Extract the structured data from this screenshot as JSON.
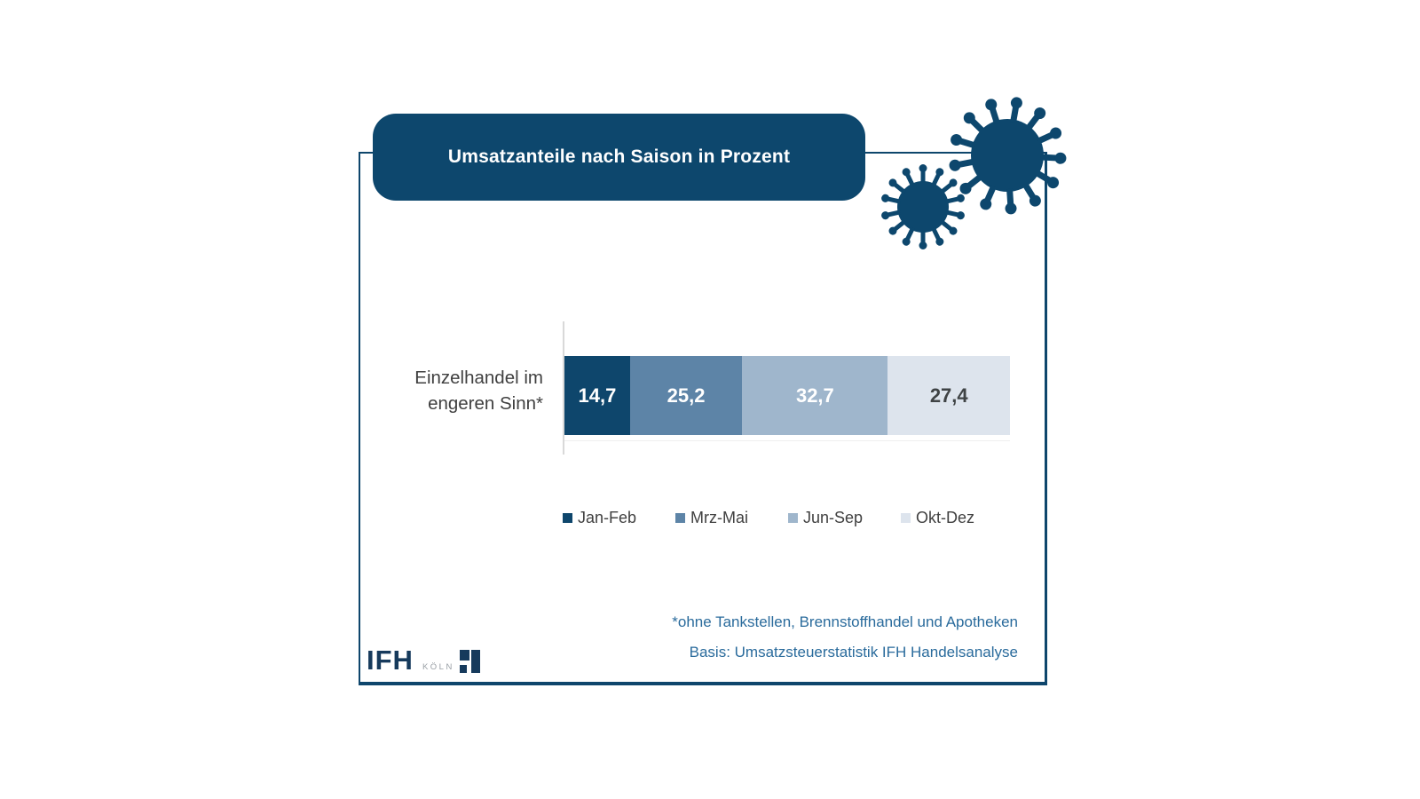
{
  "banner": {
    "title": "Umsatzanteile nach Saison in Prozent"
  },
  "chart_data": {
    "type": "bar",
    "subtype": "horizontal-stacked",
    "title": "Umsatzanteile nach Saison in Prozent",
    "category": "Einzelhandel im engeren Sinn*",
    "category_label_lines": [
      "Einzelhandel im",
      "engeren Sinn*"
    ],
    "xlim": [
      0,
      100
    ],
    "unit": "Prozent",
    "grid": false,
    "legend_position": "bottom",
    "series": [
      {
        "name": "Jan-Feb",
        "value": 14.7,
        "label": "14,7",
        "color": "#0e466c",
        "label_color": "#ffffff"
      },
      {
        "name": "Mrz-Mai",
        "value": 25.2,
        "label": "25,2",
        "color": "#5d84a7",
        "label_color": "#ffffff"
      },
      {
        "name": "Jun-Sep",
        "value": 32.7,
        "label": "32,7",
        "color": "#9fb6cc",
        "label_color": "#ffffff"
      },
      {
        "name": "Okt-Dez",
        "value": 27.4,
        "label": "27,4",
        "color": "#dde4ed",
        "label_color": "#3f4345"
      }
    ]
  },
  "footnotes": {
    "line1": "*ohne Tankstellen, Brennstoffhandel und Apotheken",
    "line2": "Basis: Umsatzsteuerstatistik IFH Handelsanalyse"
  },
  "logo": {
    "text": "IFH",
    "city": "KÖLN"
  },
  "colors": {
    "primary_navy": "#0e466c",
    "banner_navy": "#0d476d",
    "virus_navy": "#0d476d",
    "footnote_blue": "#2a6b9c",
    "text_gray": "#3f3f3f",
    "axis_gray": "#d9d9d9",
    "logo_navy": "#163a5c"
  }
}
